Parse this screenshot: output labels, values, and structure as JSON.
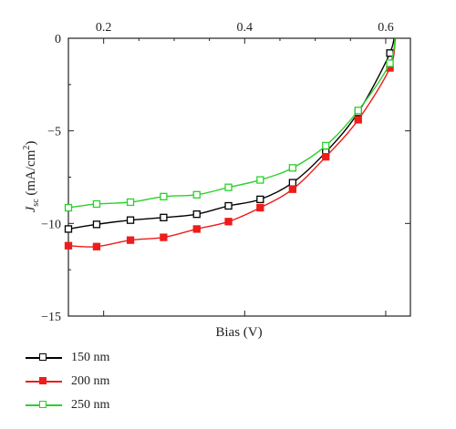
{
  "chart_data": {
    "type": "line",
    "xlabel": "Bias (V)",
    "ylabel_main": "J",
    "ylabel_sub": "sc",
    "ylabel_rest": " (mA/cm",
    "ylabel_sup": "2",
    "ylabel_end": ")",
    "xlim": [
      0.15,
      0.635
    ],
    "ylim": [
      -15,
      0
    ],
    "x_ticks": [
      0.2,
      0.4,
      0.6
    ],
    "x_tick_labels": [
      "0.2",
      "0.4",
      "0.6"
    ],
    "y_ticks": [
      0,
      -5,
      -10,
      -15
    ],
    "y_tick_labels": [
      "0",
      "−5",
      "−10",
      "−15"
    ],
    "grid": false,
    "legend_position": "bottom-left",
    "series": [
      {
        "name": "150 nm",
        "color": "#000000",
        "marker": "open-square",
        "x": [
          0.15,
          0.19,
          0.238,
          0.285,
          0.332,
          0.377,
          0.422,
          0.468,
          0.515,
          0.561,
          0.606
        ],
        "y": [
          -10.3,
          -10.05,
          -9.82,
          -9.68,
          -9.5,
          -9.05,
          -8.7,
          -7.8,
          -6.15,
          -4.0,
          -0.8
        ]
      },
      {
        "name": "200 nm",
        "color": "#ee1c1c",
        "marker": "filled-square",
        "x": [
          0.15,
          0.19,
          0.238,
          0.285,
          0.332,
          0.377,
          0.422,
          0.468,
          0.515,
          0.561,
          0.606
        ],
        "y": [
          -11.2,
          -11.25,
          -10.9,
          -10.75,
          -10.3,
          -9.9,
          -9.15,
          -8.15,
          -6.4,
          -4.4,
          -1.6
        ]
      },
      {
        "name": "250 nm",
        "color": "#2ad12a",
        "marker": "open-square",
        "x": [
          0.15,
          0.19,
          0.238,
          0.285,
          0.332,
          0.377,
          0.422,
          0.468,
          0.515,
          0.561,
          0.606
        ],
        "y": [
          -9.15,
          -8.95,
          -8.85,
          -8.55,
          -8.45,
          -8.05,
          -7.65,
          -7.0,
          -5.8,
          -3.9,
          -1.35
        ]
      }
    ]
  }
}
